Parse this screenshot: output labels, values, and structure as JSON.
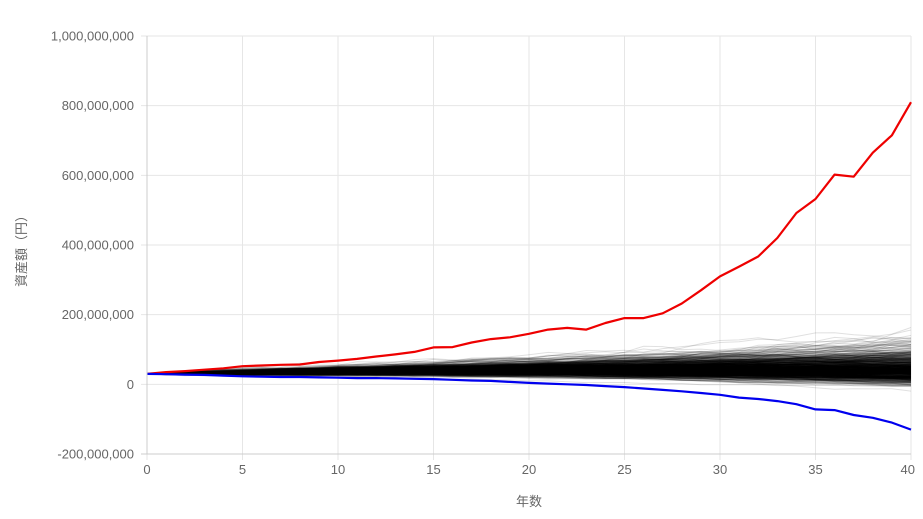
{
  "chart_data": {
    "type": "line",
    "xlabel": "年数",
    "ylabel": "資産額（円）",
    "xlim": [
      0,
      40
    ],
    "ylim": [
      -200000000,
      1000000000
    ],
    "x_ticks": [
      0,
      5,
      10,
      15,
      20,
      25,
      30,
      35,
      40
    ],
    "y_ticks": [
      -200000000,
      0,
      200000000,
      400000000,
      600000000,
      800000000,
      1000000000
    ],
    "x_tick_labels": [
      "0",
      "5",
      "10",
      "15",
      "20",
      "25",
      "30",
      "35",
      "40"
    ],
    "y_tick_labels": [
      "-200,000,000",
      "0",
      "200,000,000",
      "400,000,000",
      "600,000,000",
      "800,000,000",
      "1,000,000,000"
    ],
    "grid": true,
    "legend": "none",
    "x": [
      0,
      1,
      2,
      3,
      4,
      5,
      6,
      7,
      8,
      9,
      10,
      11,
      12,
      13,
      14,
      15,
      16,
      17,
      18,
      19,
      20,
      21,
      22,
      23,
      24,
      25,
      26,
      27,
      28,
      29,
      30,
      31,
      32,
      33,
      34,
      35,
      36,
      37,
      38,
      39,
      40
    ],
    "highlight_series": [
      {
        "role": "max",
        "color": "#ee0000",
        "values": [
          30000000,
          35000000,
          38000000,
          42000000,
          46000000,
          52000000,
          54000000,
          56000000,
          57000000,
          64000000,
          68000000,
          73000000,
          80000000,
          86000000,
          93000000,
          106000000,
          107000000,
          120000000,
          130000000,
          135000000,
          145000000,
          157000000,
          162000000,
          157000000,
          176000000,
          190000000,
          190000000,
          204000000,
          232000000,
          270000000,
          310000000,
          338000000,
          367000000,
          420000000,
          492000000,
          532000000,
          602000000,
          596000000,
          665000000,
          715000000,
          810000000
        ]
      },
      {
        "role": "min",
        "color": "#0000ee",
        "values": [
          30000000,
          29000000,
          28000000,
          27000000,
          25000000,
          23000000,
          22000000,
          21000000,
          21000000,
          20000000,
          19000000,
          18000000,
          18000000,
          17000000,
          16000000,
          15000000,
          13000000,
          11000000,
          10000000,
          7000000,
          4000000,
          2000000,
          0,
          -2000000,
          -5000000,
          -8000000,
          -12000000,
          -16000000,
          -20000000,
          -25000000,
          -30000000,
          -38000000,
          -42000000,
          -48000000,
          -57000000,
          -72000000,
          -74000000,
          -88000000,
          -96000000,
          -110000000,
          -130000000
        ]
      }
    ],
    "simulation": {
      "count": 700,
      "start_value": 30000000,
      "median_end_value": 85000000,
      "color": "#000000",
      "opacity": 0.12
    }
  }
}
